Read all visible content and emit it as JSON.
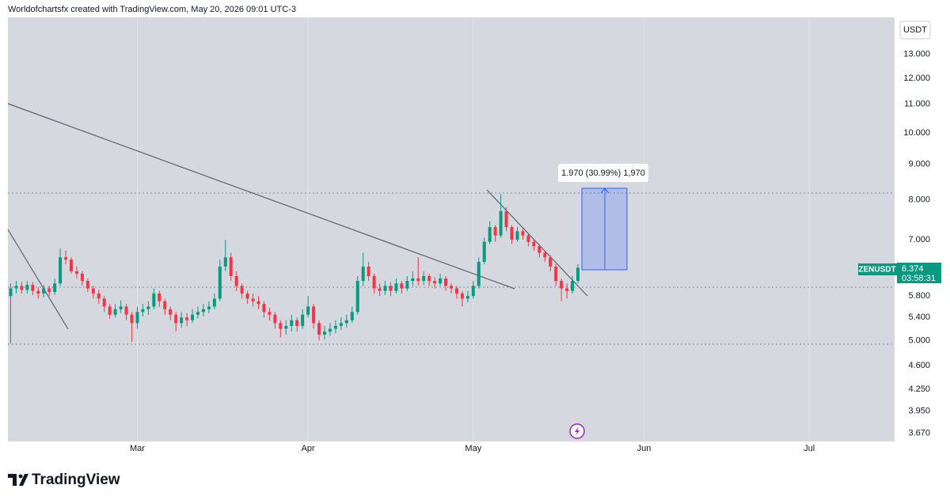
{
  "header": "Worldofchartsfx created with TradingView.com, May 20, 2026 09:01 UTC-3",
  "brand": "TradingView",
  "chart_data": {
    "type": "candlestick",
    "currency": "USDT",
    "countdown": "03:58:31",
    "measure_label": "1.970 (30.99%) 1,970",
    "log_scale": true,
    "grid": {
      "x": true,
      "y": false
    },
    "up_color": "#089981",
    "down_color": "#f23645",
    "xlim": [
      -0.5,
      160.5
    ],
    "xticks": [
      {
        "value": 23,
        "label": "Mar"
      },
      {
        "value": 54,
        "label": "Apr"
      },
      {
        "value": 84,
        "label": "May"
      },
      {
        "value": 115,
        "label": "Jun"
      },
      {
        "value": 145,
        "label": "Jul"
      }
    ],
    "ylim": [
      3.57,
      14.7
    ],
    "yticks": [
      {
        "value": 3.67,
        "label": "3.670"
      },
      {
        "value": 3.95,
        "label": "3.950"
      },
      {
        "value": 4.25,
        "label": "4.250"
      },
      {
        "value": 4.6,
        "label": "4.600"
      },
      {
        "value": 5,
        "label": "5.000"
      },
      {
        "value": 5.4,
        "label": "5.400"
      },
      {
        "value": 5.8,
        "label": "5.800"
      },
      {
        "value": 7,
        "label": "7.000"
      },
      {
        "value": 8,
        "label": "8.000"
      },
      {
        "value": 9,
        "label": "9.000"
      },
      {
        "value": 10,
        "label": "10.000"
      },
      {
        "value": 11,
        "label": "11.000"
      },
      {
        "value": 12,
        "label": "12.000"
      },
      {
        "value": 13,
        "label": "13.000"
      }
    ],
    "series": [
      {
        "name": "ZENUSDT",
        "open": [
          5.8,
          5.95,
          6.0,
          5.92,
          6.02,
          5.9,
          5.85,
          5.95,
          5.88,
          6.05,
          6.6,
          6.55,
          6.3,
          6.25,
          6.1,
          5.95,
          5.85,
          5.75,
          5.6,
          5.45,
          5.55,
          5.6,
          5.45,
          5.3,
          5.5,
          5.55,
          5.6,
          5.85,
          5.7,
          5.55,
          5.45,
          5.3,
          5.4,
          5.35,
          5.45,
          5.5,
          5.55,
          5.6,
          5.75,
          6.4,
          6.6,
          6.2,
          6.0,
          5.85,
          5.75,
          5.7,
          5.65,
          5.5,
          5.45,
          5.3,
          5.2,
          5.25,
          5.35,
          5.25,
          5.45,
          5.6,
          5.3,
          5.1,
          5.15,
          5.2,
          5.25,
          5.3,
          5.35,
          5.5,
          6.1,
          6.4,
          6.2,
          5.95,
          5.9,
          6.0,
          5.9,
          6.05,
          5.95,
          6.1,
          6.15,
          6.1,
          6.2,
          6.1,
          6.05,
          6.15,
          6.0,
          5.95,
          5.85,
          5.75,
          5.8,
          6.0,
          6.5,
          6.95,
          7.3,
          7.1,
          7.7,
          7.3,
          7.0,
          7.2,
          7.1,
          6.95,
          6.85,
          6.7,
          6.6,
          6.4,
          6.1,
          5.95,
          5.9,
          6.1
        ],
        "high": [
          6.05,
          6.1,
          6.08,
          6.1,
          6.08,
          5.98,
          6.02,
          6.0,
          6.15,
          6.8,
          6.75,
          6.6,
          6.4,
          6.3,
          6.15,
          6.0,
          5.92,
          5.8,
          5.65,
          5.65,
          5.72,
          5.65,
          5.5,
          5.6,
          5.65,
          5.7,
          5.95,
          5.9,
          5.75,
          5.6,
          5.5,
          5.5,
          5.48,
          5.55,
          5.6,
          5.65,
          5.7,
          5.85,
          6.55,
          7.0,
          6.7,
          6.3,
          6.05,
          5.9,
          5.85,
          5.8,
          5.7,
          5.58,
          5.5,
          5.35,
          5.35,
          5.45,
          5.4,
          5.55,
          5.8,
          5.65,
          5.35,
          5.25,
          5.3,
          5.35,
          5.4,
          5.45,
          5.6,
          6.2,
          6.7,
          6.5,
          6.25,
          6.05,
          6.1,
          6.08,
          6.15,
          6.1,
          6.2,
          6.3,
          6.6,
          6.3,
          6.25,
          6.18,
          6.25,
          6.2,
          6.05,
          6.0,
          5.9,
          5.9,
          6.1,
          6.6,
          7.05,
          7.45,
          7.35,
          8.15,
          7.8,
          7.35,
          7.3,
          7.25,
          7.15,
          7.0,
          6.9,
          6.75,
          6.65,
          6.45,
          6.15,
          6.05,
          6.2,
          6.45
        ],
        "low": [
          4.95,
          5.85,
          5.85,
          5.85,
          5.82,
          5.75,
          5.78,
          5.8,
          5.82,
          6.0,
          6.45,
          6.25,
          6.15,
          6.0,
          5.88,
          5.75,
          5.65,
          5.5,
          5.38,
          5.4,
          5.48,
          5.35,
          4.98,
          5.2,
          5.42,
          5.45,
          5.55,
          5.6,
          5.45,
          5.35,
          5.15,
          5.22,
          5.25,
          5.3,
          5.38,
          5.42,
          5.48,
          5.55,
          5.7,
          6.3,
          6.1,
          5.9,
          5.75,
          5.65,
          5.6,
          5.55,
          5.4,
          5.35,
          5.2,
          5.05,
          5.1,
          5.15,
          5.15,
          5.2,
          5.4,
          5.2,
          5.0,
          5.02,
          5.08,
          5.12,
          5.18,
          5.22,
          5.3,
          5.45,
          6.0,
          6.1,
          5.85,
          5.8,
          5.82,
          5.8,
          5.85,
          5.85,
          5.9,
          6.0,
          6.0,
          6.02,
          6.0,
          5.95,
          6.0,
          5.9,
          5.85,
          5.75,
          5.6,
          5.68,
          5.75,
          5.95,
          6.45,
          6.9,
          6.95,
          7.05,
          7.2,
          6.9,
          6.95,
          7.0,
          6.85,
          6.75,
          6.6,
          6.5,
          6.3,
          6.0,
          5.7,
          5.75,
          5.85,
          6.05
        ],
        "close": [
          5.95,
          6.0,
          5.92,
          6.02,
          5.9,
          5.85,
          5.95,
          5.88,
          6.05,
          6.6,
          6.55,
          6.3,
          6.25,
          6.1,
          5.95,
          5.85,
          5.75,
          5.6,
          5.45,
          5.55,
          5.6,
          5.45,
          5.3,
          5.5,
          5.55,
          5.6,
          5.85,
          5.7,
          5.55,
          5.45,
          5.3,
          5.4,
          5.35,
          5.45,
          5.5,
          5.55,
          5.6,
          5.75,
          6.4,
          6.6,
          6.2,
          6.0,
          5.85,
          5.75,
          5.7,
          5.65,
          5.5,
          5.45,
          5.3,
          5.2,
          5.25,
          5.35,
          5.25,
          5.45,
          5.6,
          5.3,
          5.1,
          5.15,
          5.2,
          5.25,
          5.3,
          5.35,
          5.5,
          6.1,
          6.4,
          6.2,
          5.95,
          5.9,
          6.0,
          5.9,
          6.05,
          5.95,
          6.1,
          6.15,
          6.1,
          6.2,
          6.1,
          6.05,
          6.15,
          6.0,
          5.95,
          5.85,
          5.75,
          5.8,
          6.0,
          6.5,
          6.95,
          7.3,
          7.1,
          7.7,
          7.3,
          7.0,
          7.2,
          7.1,
          6.95,
          6.85,
          6.7,
          6.6,
          6.4,
          6.1,
          5.95,
          5.9,
          6.1,
          6.374
        ]
      }
    ]
  }
}
